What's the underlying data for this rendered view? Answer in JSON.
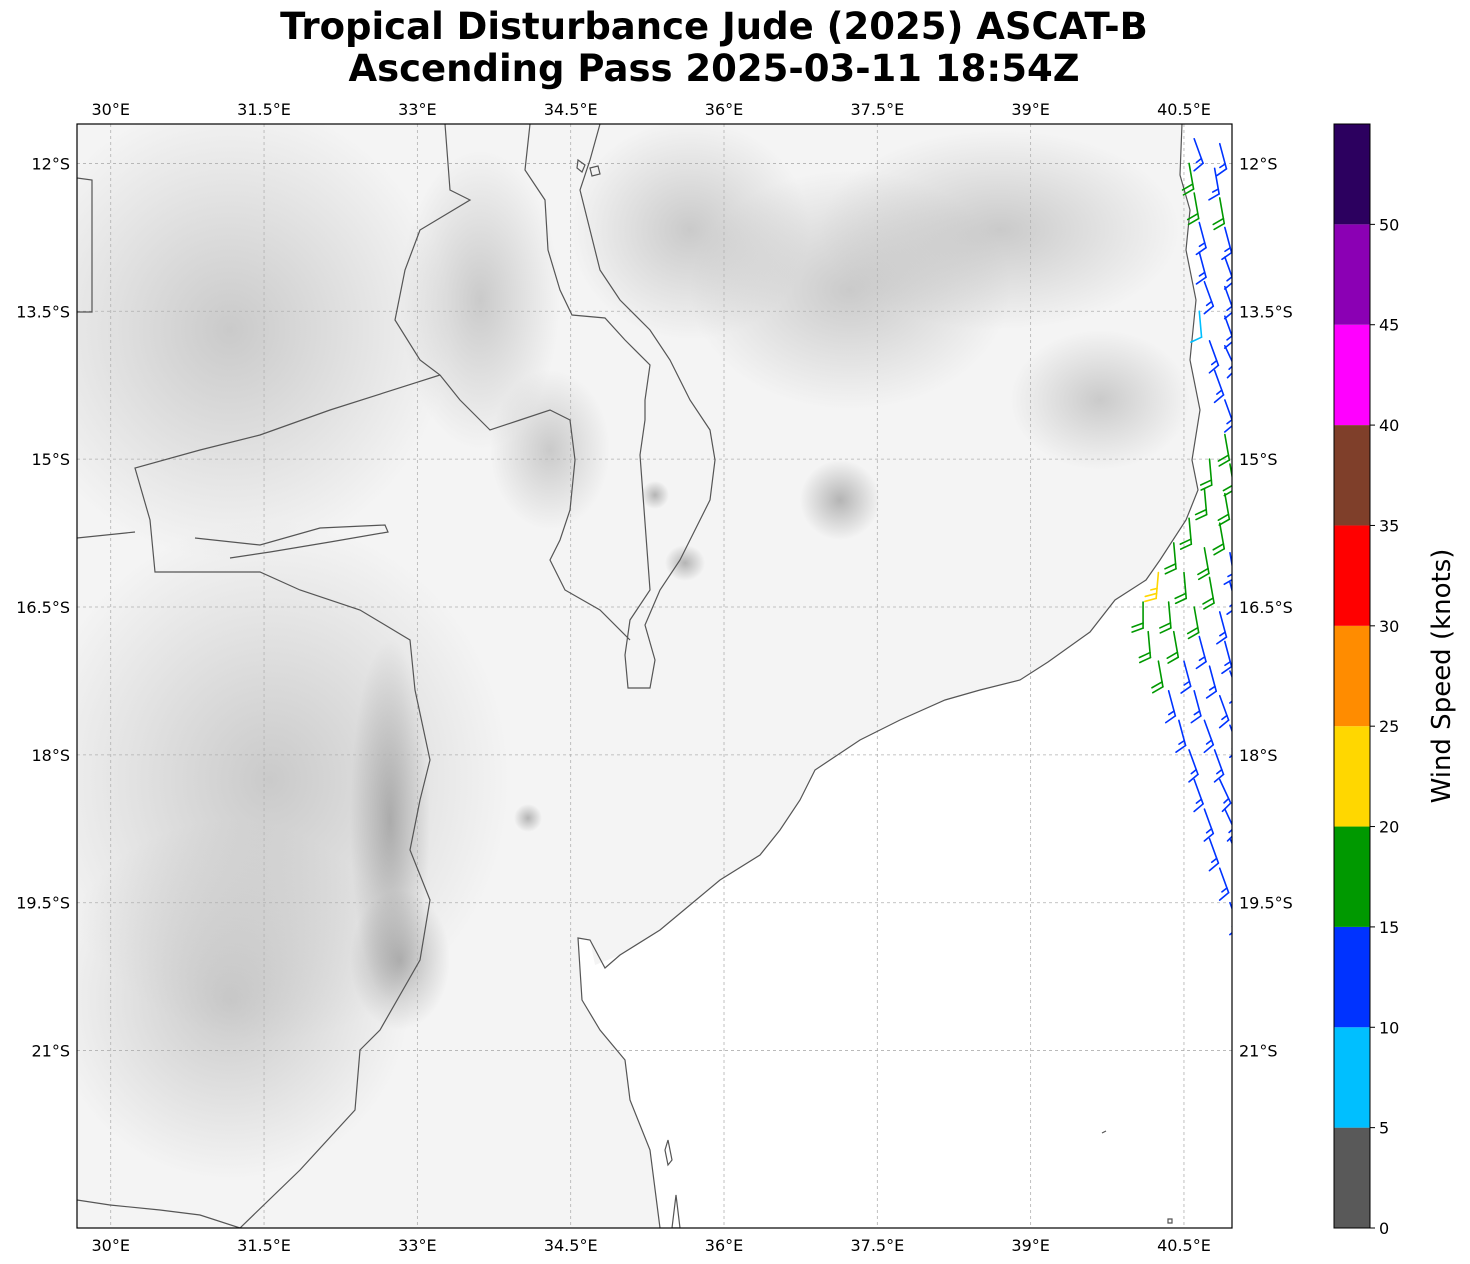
{
  "title": {
    "line1": "Tropical Disturbance Jude (2025) ASCAT-B",
    "line2": "Ascending Pass 2025-03-11 18:54Z"
  },
  "map": {
    "extent": {
      "lon_min": 29.67,
      "lon_max": 40.97,
      "lat_min": -22.8,
      "lat_max": -11.6
    },
    "lon_ticks": [
      {
        "value": 30.0,
        "label": "30°E"
      },
      {
        "value": 31.5,
        "label": "31.5°E"
      },
      {
        "value": 33.0,
        "label": "33°E"
      },
      {
        "value": 34.5,
        "label": "34.5°E"
      },
      {
        "value": 36.0,
        "label": "36°E"
      },
      {
        "value": 37.5,
        "label": "37.5°E"
      },
      {
        "value": 39.0,
        "label": "39°E"
      },
      {
        "value": 40.5,
        "label": "40.5°E"
      }
    ],
    "lat_ticks": [
      {
        "value": -12.0,
        "label": "12°S"
      },
      {
        "value": -13.5,
        "label": "13.5°S"
      },
      {
        "value": -15.0,
        "label": "15°S"
      },
      {
        "value": -16.5,
        "label": "16.5°S"
      },
      {
        "value": -18.0,
        "label": "18°S"
      },
      {
        "value": -19.5,
        "label": "19.5°S"
      },
      {
        "value": -21.0,
        "label": "21°S"
      }
    ],
    "gridlines": true,
    "background": "grayscale-terrain",
    "coastline_color": "#555555",
    "wind_barbs": [
      {
        "lon": 40.6,
        "lat": -11.75,
        "speed": 13,
        "dir": 160
      },
      {
        "lon": 40.85,
        "lat": -11.8,
        "speed": 13,
        "dir": 165
      },
      {
        "lon": 40.55,
        "lat": -12.0,
        "speed": 18,
        "dir": 170
      },
      {
        "lon": 40.8,
        "lat": -12.05,
        "speed": 13,
        "dir": 170
      },
      {
        "lon": 40.6,
        "lat": -12.3,
        "speed": 18,
        "dir": 170
      },
      {
        "lon": 40.85,
        "lat": -12.35,
        "speed": 18,
        "dir": 170
      },
      {
        "lon": 40.65,
        "lat": -12.6,
        "speed": 13,
        "dir": 165
      },
      {
        "lon": 40.9,
        "lat": -12.65,
        "speed": 13,
        "dir": 165
      },
      {
        "lon": 40.65,
        "lat": -12.9,
        "speed": 13,
        "dir": 165
      },
      {
        "lon": 40.9,
        "lat": -12.95,
        "speed": 13,
        "dir": 160
      },
      {
        "lon": 40.7,
        "lat": -13.2,
        "speed": 13,
        "dir": 160
      },
      {
        "lon": 40.9,
        "lat": -13.25,
        "speed": 13,
        "dir": 160
      },
      {
        "lon": 40.65,
        "lat": -13.5,
        "speed": 8,
        "dir": 175
      },
      {
        "lon": 40.9,
        "lat": -13.55,
        "speed": 13,
        "dir": 160
      },
      {
        "lon": 40.75,
        "lat": -13.8,
        "speed": 13,
        "dir": 160
      },
      {
        "lon": 40.9,
        "lat": -13.85,
        "speed": 13,
        "dir": 155
      },
      {
        "lon": 40.8,
        "lat": -14.1,
        "speed": 13,
        "dir": 160
      },
      {
        "lon": 40.9,
        "lat": -14.4,
        "speed": 13,
        "dir": 160
      },
      {
        "lon": 40.9,
        "lat": -14.75,
        "speed": 18,
        "dir": 170
      },
      {
        "lon": 40.75,
        "lat": -15.0,
        "speed": 18,
        "dir": 175
      },
      {
        "lon": 40.95,
        "lat": -15.05,
        "speed": 18,
        "dir": 170
      },
      {
        "lon": 40.7,
        "lat": -15.3,
        "speed": 18,
        "dir": 175
      },
      {
        "lon": 40.9,
        "lat": -15.35,
        "speed": 18,
        "dir": 170
      },
      {
        "lon": 40.55,
        "lat": -15.6,
        "speed": 18,
        "dir": 175
      },
      {
        "lon": 40.85,
        "lat": -15.65,
        "speed": 18,
        "dir": 170
      },
      {
        "lon": 40.4,
        "lat": -15.85,
        "speed": 18,
        "dir": 175
      },
      {
        "lon": 40.7,
        "lat": -15.9,
        "speed": 18,
        "dir": 170
      },
      {
        "lon": 40.95,
        "lat": -15.95,
        "speed": 13,
        "dir": 170
      },
      {
        "lon": 40.25,
        "lat": -16.15,
        "speed": 23,
        "dir": 185
      },
      {
        "lon": 40.5,
        "lat": -16.15,
        "speed": 18,
        "dir": 175
      },
      {
        "lon": 40.75,
        "lat": -16.2,
        "speed": 18,
        "dir": 170
      },
      {
        "lon": 40.95,
        "lat": -16.25,
        "speed": 13,
        "dir": 165
      },
      {
        "lon": 40.1,
        "lat": -16.45,
        "speed": 18,
        "dir": 180
      },
      {
        "lon": 40.35,
        "lat": -16.45,
        "speed": 18,
        "dir": 175
      },
      {
        "lon": 40.6,
        "lat": -16.5,
        "speed": 18,
        "dir": 170
      },
      {
        "lon": 40.85,
        "lat": -16.55,
        "speed": 13,
        "dir": 165
      },
      {
        "lon": 40.15,
        "lat": -16.75,
        "speed": 18,
        "dir": 175
      },
      {
        "lon": 40.4,
        "lat": -16.75,
        "speed": 18,
        "dir": 170
      },
      {
        "lon": 40.65,
        "lat": -16.8,
        "speed": 13,
        "dir": 165
      },
      {
        "lon": 40.9,
        "lat": -16.85,
        "speed": 13,
        "dir": 165
      },
      {
        "lon": 40.25,
        "lat": -17.05,
        "speed": 18,
        "dir": 170
      },
      {
        "lon": 40.5,
        "lat": -17.05,
        "speed": 13,
        "dir": 165
      },
      {
        "lon": 40.75,
        "lat": -17.1,
        "speed": 13,
        "dir": 165
      },
      {
        "lon": 40.95,
        "lat": -17.15,
        "speed": 13,
        "dir": 160
      },
      {
        "lon": 40.35,
        "lat": -17.35,
        "speed": 13,
        "dir": 165
      },
      {
        "lon": 40.6,
        "lat": -17.35,
        "speed": 13,
        "dir": 165
      },
      {
        "lon": 40.85,
        "lat": -17.4,
        "speed": 13,
        "dir": 160
      },
      {
        "lon": 40.45,
        "lat": -17.65,
        "speed": 13,
        "dir": 165
      },
      {
        "lon": 40.7,
        "lat": -17.65,
        "speed": 13,
        "dir": 160
      },
      {
        "lon": 40.95,
        "lat": -17.7,
        "speed": 13,
        "dir": 160
      },
      {
        "lon": 40.55,
        "lat": -17.95,
        "speed": 13,
        "dir": 160
      },
      {
        "lon": 40.8,
        "lat": -17.95,
        "speed": 13,
        "dir": 160
      },
      {
        "lon": 40.6,
        "lat": -18.25,
        "speed": 13,
        "dir": 160
      },
      {
        "lon": 40.85,
        "lat": -18.25,
        "speed": 13,
        "dir": 155
      },
      {
        "lon": 40.7,
        "lat": -18.55,
        "speed": 13,
        "dir": 160
      },
      {
        "lon": 40.9,
        "lat": -18.55,
        "speed": 13,
        "dir": 155
      },
      {
        "lon": 40.75,
        "lat": -18.85,
        "speed": 13,
        "dir": 160
      },
      {
        "lon": 40.95,
        "lat": -18.85,
        "speed": 13,
        "dir": 155
      },
      {
        "lon": 40.85,
        "lat": -19.15,
        "speed": 13,
        "dir": 160
      },
      {
        "lon": 40.95,
        "lat": -19.5,
        "speed": 13,
        "dir": 160
      }
    ]
  },
  "colorbar": {
    "title": "Wind Speed (knots)",
    "ticks": [
      "0",
      "5",
      "10",
      "15",
      "20",
      "25",
      "30",
      "35",
      "40",
      "45",
      "50"
    ],
    "bins": [
      {
        "from": 0,
        "to": 5,
        "color": "#595959"
      },
      {
        "from": 5,
        "to": 10,
        "color": "#00bfff"
      },
      {
        "from": 10,
        "to": 15,
        "color": "#0033ff"
      },
      {
        "from": 15,
        "to": 20,
        "color": "#009900"
      },
      {
        "from": 20,
        "to": 25,
        "color": "#ffd700"
      },
      {
        "from": 25,
        "to": 30,
        "color": "#ff8c00"
      },
      {
        "from": 30,
        "to": 35,
        "color": "#ff0000"
      },
      {
        "from": 35,
        "to": 40,
        "color": "#7f3f2a"
      },
      {
        "from": 40,
        "to": 45,
        "color": "#ff00ff"
      },
      {
        "from": 45,
        "to": 50,
        "color": "#8b00b4"
      },
      {
        "from": 50,
        "to": 55,
        "color": "#2c005f"
      }
    ]
  }
}
